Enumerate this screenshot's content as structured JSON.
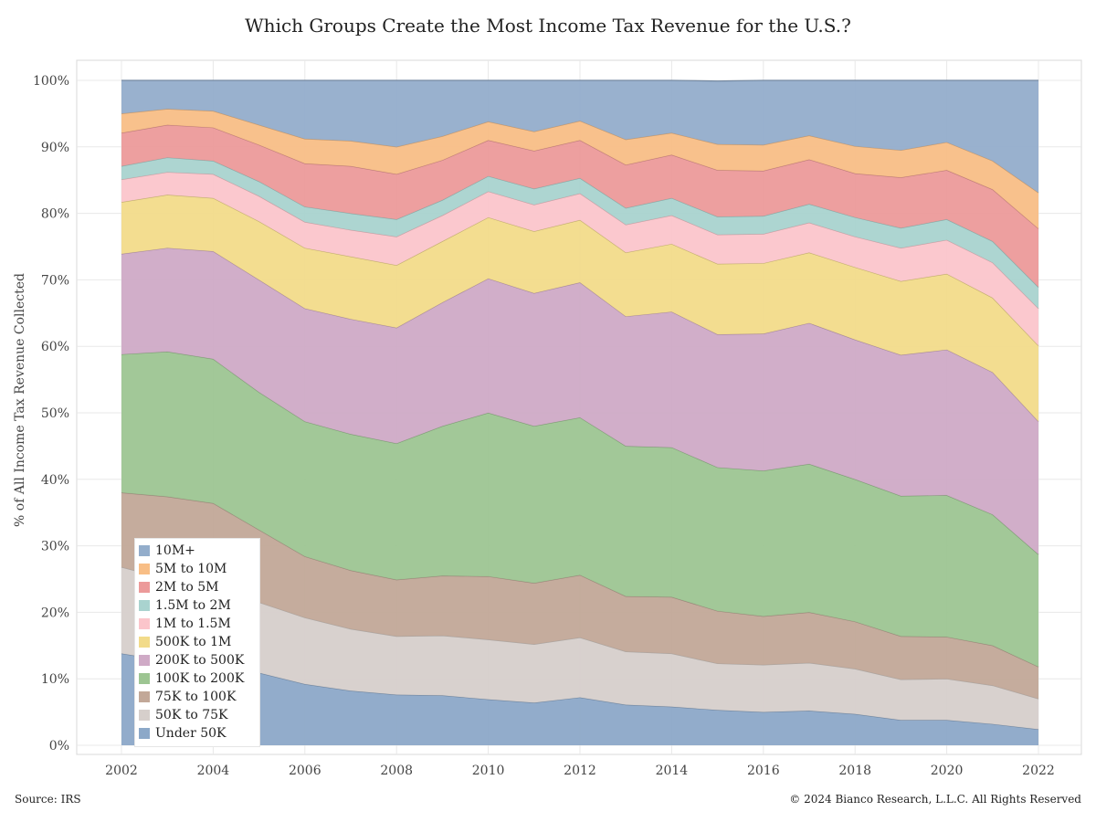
{
  "title": "Which Groups Create the Most Income Tax Revenue for the U.S.?",
  "source": "Source: IRS",
  "copyright": "© 2024 Bianco Research, L.L.C. All Rights Reserved",
  "chart_data": {
    "type": "area",
    "stacked": true,
    "title": "Which Groups Create the Most Income Tax Revenue for the U.S.?",
    "xlabel": "",
    "ylabel": "% of All Income Tax Revenue Collected",
    "x": [
      2002,
      2003,
      2004,
      2005,
      2006,
      2007,
      2008,
      2009,
      2010,
      2011,
      2012,
      2013,
      2014,
      2015,
      2016,
      2017,
      2018,
      2019,
      2020,
      2021,
      2022
    ],
    "x_ticks": [
      "2002",
      "2004",
      "2006",
      "2008",
      "2010",
      "2012",
      "2014",
      "2016",
      "2018",
      "2020",
      "2022"
    ],
    "y_ticks": [
      "0%",
      "10%",
      "20%",
      "30%",
      "40%",
      "50%",
      "60%",
      "70%",
      "80%",
      "90%",
      "100%"
    ],
    "ylim": [
      0,
      100
    ],
    "xlim": [
      2002,
      2022
    ],
    "grid": true,
    "legend_position": "bottom-left",
    "series": [
      {
        "name": "Under 50K",
        "color": "#8ca8c8",
        "values": [
          13.8,
          12.7,
          12.1,
          10.9,
          9.2,
          8.2,
          7.6,
          7.5,
          6.9,
          6.4,
          7.2,
          6.1,
          5.8,
          5.3,
          5.0,
          5.2,
          4.7,
          3.8,
          3.8,
          3.2,
          2.4
        ]
      },
      {
        "name": "50K to 75K",
        "color": "#d6cfcb",
        "values": [
          13.0,
          12.3,
          11.5,
          10.6,
          10.0,
          9.3,
          8.8,
          9.0,
          9.0,
          8.8,
          9.0,
          8.0,
          8.0,
          7.0,
          7.1,
          7.2,
          6.8,
          6.1,
          6.2,
          5.8,
          4.6
        ]
      },
      {
        "name": "75K to 100K",
        "color": "#c2a898",
        "values": [
          11.2,
          12.4,
          12.8,
          10.9,
          9.2,
          8.8,
          8.5,
          9.0,
          9.5,
          9.2,
          9.4,
          8.3,
          8.5,
          7.9,
          7.3,
          7.6,
          7.1,
          6.5,
          6.3,
          6.0,
          4.8
        ]
      },
      {
        "name": "100K to 200K",
        "color": "#9dc592",
        "values": [
          20.8,
          21.8,
          21.7,
          20.7,
          20.3,
          20.5,
          20.5,
          22.5,
          24.6,
          23.6,
          23.7,
          22.6,
          22.5,
          21.6,
          21.9,
          22.3,
          21.4,
          21.1,
          21.3,
          19.7,
          16.9
        ]
      },
      {
        "name": "200K to 500K",
        "color": "#cfaac6",
        "values": [
          15.1,
          15.6,
          16.2,
          16.9,
          17.0,
          17.3,
          17.4,
          18.6,
          20.2,
          20.0,
          20.3,
          19.5,
          20.4,
          20.0,
          20.6,
          21.2,
          21.0,
          21.2,
          21.9,
          21.4,
          20.0
        ]
      },
      {
        "name": "500K to 1M",
        "color": "#f2db8a",
        "values": [
          7.8,
          8.0,
          8.0,
          8.8,
          9.1,
          9.4,
          9.4,
          9.2,
          9.2,
          9.3,
          9.4,
          9.6,
          10.2,
          10.6,
          10.6,
          10.6,
          10.9,
          11.1,
          11.4,
          11.2,
          11.4
        ]
      },
      {
        "name": "1M to 1.5M",
        "color": "#fbc5cb",
        "values": [
          3.4,
          3.4,
          3.6,
          3.8,
          3.9,
          4.0,
          4.3,
          3.9,
          3.9,
          4.0,
          4.0,
          4.2,
          4.3,
          4.4,
          4.4,
          4.5,
          4.6,
          5.0,
          5.1,
          5.3,
          5.6
        ]
      },
      {
        "name": "1.5M to 2M",
        "color": "#a9d3cf",
        "values": [
          2.0,
          2.2,
          2.0,
          2.2,
          2.3,
          2.5,
          2.6,
          2.3,
          2.3,
          2.4,
          2.3,
          2.5,
          2.6,
          2.7,
          2.7,
          2.8,
          2.9,
          3.0,
          3.1,
          3.2,
          3.2
        ]
      },
      {
        "name": "2M to 5M",
        "color": "#ec9a9a",
        "values": [
          5.0,
          4.9,
          5.0,
          5.5,
          6.5,
          7.1,
          6.8,
          6.0,
          5.4,
          5.7,
          5.7,
          6.5,
          6.5,
          7.0,
          6.8,
          6.7,
          6.6,
          7.6,
          7.4,
          7.8,
          8.8
        ]
      },
      {
        "name": "5M to 10M",
        "color": "#f8be86",
        "values": [
          2.9,
          2.4,
          2.5,
          3.0,
          3.7,
          3.8,
          4.1,
          3.6,
          2.8,
          2.9,
          2.9,
          3.8,
          3.3,
          3.9,
          3.9,
          3.6,
          4.1,
          4.1,
          4.2,
          4.3,
          5.4
        ]
      },
      {
        "name": "10M+",
        "color": "#93adcb",
        "values": [
          5.0,
          4.3,
          4.6,
          6.7,
          8.8,
          9.1,
          10.0,
          8.4,
          6.2,
          7.7,
          6.1,
          8.9,
          7.9,
          9.5,
          9.7,
          8.3,
          9.9,
          10.5,
          9.3,
          12.1,
          16.9
        ]
      }
    ]
  }
}
